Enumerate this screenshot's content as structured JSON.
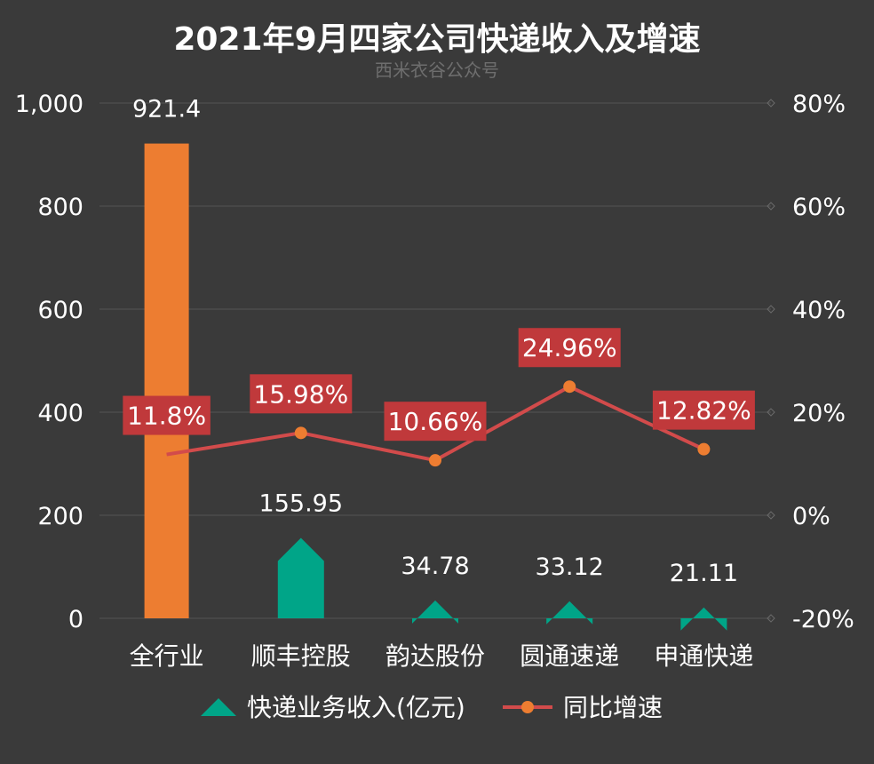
{
  "chart_data": {
    "type": "bar",
    "title": "2021年9月四家公司快递收入及增速",
    "subtitle": "西米衣谷公众号",
    "categories": [
      "全行业",
      "顺丰控股",
      "韵达股份",
      "圆通速递",
      "申通快递"
    ],
    "series": [
      {
        "name": "快递业务收入(亿元)",
        "type": "bar",
        "axis": "left",
        "values": [
          921.4,
          155.95,
          34.78,
          33.12,
          21.11
        ],
        "labels": [
          "921.4",
          "155.95",
          "34.78",
          "33.12",
          "21.11"
        ],
        "colors": [
          "#ED7D31",
          "#00A588",
          "#00A588",
          "#00A588",
          "#00A588"
        ]
      },
      {
        "name": "同比增速",
        "type": "line",
        "axis": "right",
        "values": [
          11.8,
          15.98,
          10.66,
          24.96,
          12.82
        ],
        "labels": [
          "11.8%",
          "15.98%",
          "10.66%",
          "24.96%",
          "12.82%"
        ],
        "color": "#D24B4B",
        "marker_color": "#ED7D31"
      }
    ],
    "y_left": {
      "ylim": [
        0,
        1000
      ],
      "ticks": [
        "0",
        "200",
        "400",
        "600",
        "800",
        "1,000"
      ],
      "tick_values": [
        0,
        200,
        400,
        600,
        800,
        1000
      ]
    },
    "y_right": {
      "ylim": [
        -20,
        80
      ],
      "ticks": [
        "-20%",
        "0%",
        "20%",
        "40%",
        "60%",
        "80%"
      ],
      "tick_values": [
        -20,
        0,
        20,
        40,
        60,
        80
      ]
    },
    "grid": true,
    "legend_position": "bottom",
    "colors": {
      "background": "#3a3a3a",
      "grid": "#4f4f4f",
      "label_box": "#C0393B"
    }
  }
}
